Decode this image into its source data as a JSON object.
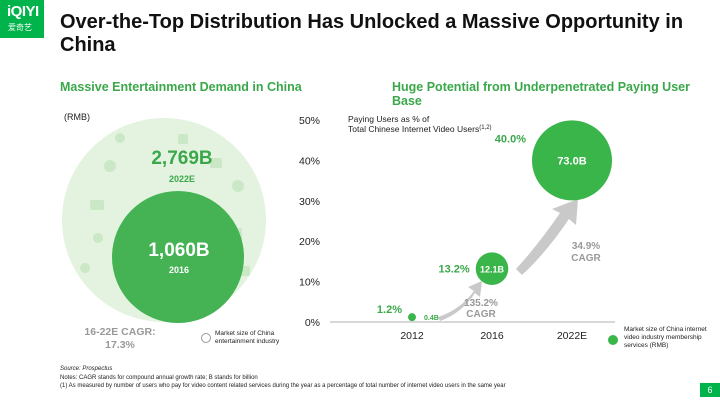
{
  "logo": {
    "mark": "iQIYI",
    "sub": "爱奇艺"
  },
  "title": "Over-the-Top Distribution Has Unlocked a Massive Opportunity in China",
  "left": {
    "section_title": "Massive Entertainment Demand in China",
    "unit": "(RMB)",
    "outer": {
      "value": "2,769B",
      "label": "2022E"
    },
    "inner": {
      "value": "1,060B",
      "label": "2016"
    },
    "cagr": "16-22E CAGR:",
    "cagr_value": "17.3%",
    "legend": "Market size of China entertainment industry"
  },
  "right": {
    "section_title": "Huge Potential from Underpenetrated Paying User Base",
    "chart_note_line1": "Paying Users as % of",
    "chart_note_line2": "Total Chinese Internet Video Users",
    "chart_note_sup": "(1,2)",
    "legend": "Market size of China internet video industry membership services (RMB)"
  },
  "chart_data": {
    "type": "scatter",
    "categories": [
      "2012",
      "2016",
      "2022E"
    ],
    "y_ticks": [
      "0%",
      "10%",
      "20%",
      "30%",
      "40%",
      "50%"
    ],
    "ylim": [
      0,
      50
    ],
    "points": [
      {
        "x": "2012",
        "pct": 1.2,
        "pct_label": "1.2%",
        "market": "0.4B",
        "market_value": 0.4
      },
      {
        "x": "2016",
        "pct": 13.2,
        "pct_label": "13.2%",
        "market": "12.1B",
        "market_value": 12.1
      },
      {
        "x": "2022E",
        "pct": 40.0,
        "pct_label": "40.0%",
        "market": "73.0B",
        "market_value": 73.0
      }
    ],
    "annotations": [
      {
        "value": "135.2%",
        "label": "CAGR"
      },
      {
        "value": "34.9%",
        "label": "CAGR"
      }
    ]
  },
  "notes": {
    "source": "Source: Prospectus",
    "line1": "Notes: CAGR stands for compound annual growth rate; B stands for billion",
    "line2": "(1)  As measured by number of users who pay for video content related services during the year as a percentage of total number of internet video users in the same year"
  },
  "page_number": "6",
  "colors": {
    "brand": "#00b34a",
    "accent": "#3ab54a",
    "muted": "#999999"
  }
}
